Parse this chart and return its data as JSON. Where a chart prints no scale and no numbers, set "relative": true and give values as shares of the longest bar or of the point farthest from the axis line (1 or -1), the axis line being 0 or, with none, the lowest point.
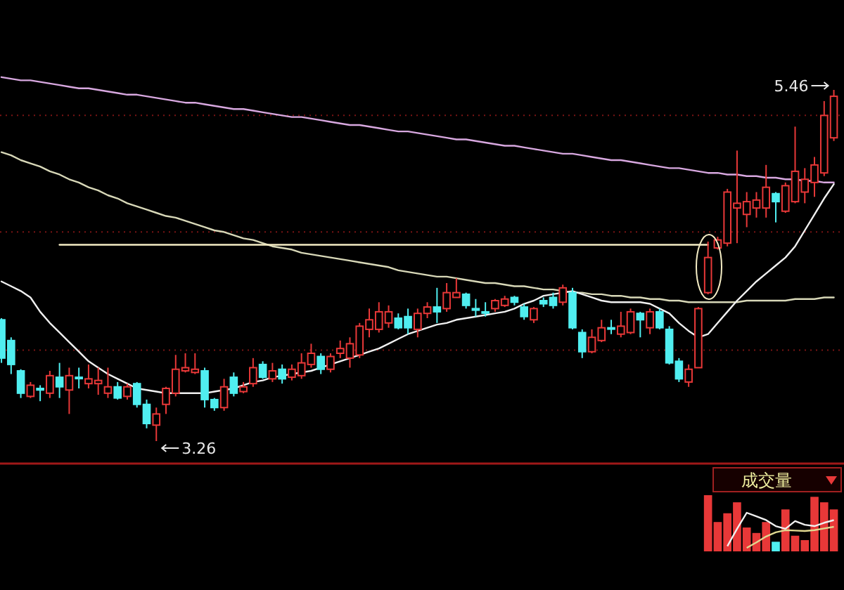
{
  "chart_data": [
    {
      "type": "candlestick",
      "categories": [
        null,
        null,
        null,
        null,
        null,
        null,
        null,
        null,
        null,
        null,
        null,
        null,
        null,
        null,
        null,
        null,
        null,
        null,
        null,
        null,
        null,
        null,
        null,
        null,
        null,
        null,
        null,
        null,
        null,
        null,
        null,
        null,
        null,
        null,
        null,
        null,
        null,
        null,
        null,
        null,
        null,
        null,
        null,
        null,
        null,
        null,
        null,
        null,
        null,
        null,
        null,
        null,
        null,
        null,
        null,
        null,
        null,
        null,
        null,
        null,
        null,
        null,
        null,
        null,
        null,
        null,
        null,
        null,
        null,
        null,
        null,
        null,
        null,
        null,
        null,
        null,
        null,
        null,
        null,
        null,
        null,
        null,
        null,
        null,
        null,
        null,
        null
      ],
      "ohlc": [
        [
          4.02,
          4.03,
          3.75,
          3.78
        ],
        [
          3.89,
          3.91,
          3.68,
          3.74
        ],
        [
          3.7,
          3.71,
          3.53,
          3.56
        ],
        [
          3.54,
          3.63,
          3.53,
          3.61
        ],
        [
          3.59,
          3.61,
          3.51,
          3.58
        ],
        [
          3.56,
          3.7,
          3.53,
          3.67
        ],
        [
          3.66,
          3.75,
          3.53,
          3.6
        ],
        [
          3.58,
          3.72,
          3.43,
          3.67
        ],
        [
          3.66,
          3.72,
          3.59,
          3.66
        ],
        [
          3.62,
          3.74,
          3.59,
          3.65
        ],
        [
          3.62,
          3.72,
          3.55,
          3.64
        ],
        [
          3.56,
          3.72,
          3.53,
          3.6
        ],
        [
          3.6,
          3.63,
          3.52,
          3.53
        ],
        [
          3.54,
          3.62,
          3.52,
          3.6
        ],
        [
          3.62,
          3.63,
          3.47,
          3.49
        ],
        [
          3.49,
          3.52,
          3.34,
          3.37
        ],
        [
          3.36,
          3.47,
          3.26,
          3.43
        ],
        [
          3.49,
          3.6,
          3.43,
          3.59
        ],
        [
          3.56,
          3.8,
          3.54,
          3.71
        ],
        [
          3.7,
          3.81,
          3.69,
          3.72
        ],
        [
          3.69,
          3.81,
          3.68,
          3.71
        ],
        [
          3.7,
          3.72,
          3.47,
          3.52
        ],
        [
          3.52,
          3.53,
          3.45,
          3.47
        ],
        [
          3.47,
          3.65,
          3.45,
          3.6
        ],
        [
          3.66,
          3.69,
          3.54,
          3.56
        ],
        [
          3.57,
          3.63,
          3.56,
          3.6
        ],
        [
          3.62,
          3.78,
          3.6,
          3.72
        ],
        [
          3.74,
          3.76,
          3.65,
          3.66
        ],
        [
          3.65,
          3.75,
          3.63,
          3.7
        ],
        [
          3.71,
          3.74,
          3.62,
          3.65
        ],
        [
          3.66,
          3.74,
          3.64,
          3.71
        ],
        [
          3.67,
          3.81,
          3.65,
          3.75
        ],
        [
          3.74,
          3.87,
          3.72,
          3.81
        ],
        [
          3.79,
          3.81,
          3.68,
          3.71
        ],
        [
          3.71,
          3.81,
          3.69,
          3.79
        ],
        [
          3.81,
          3.89,
          3.78,
          3.84
        ],
        [
          3.78,
          3.91,
          3.72,
          3.87
        ],
        [
          3.8,
          4.0,
          3.78,
          3.98
        ],
        [
          3.96,
          4.09,
          3.91,
          4.02
        ],
        [
          3.96,
          4.13,
          3.94,
          4.07
        ],
        [
          4.0,
          4.11,
          3.97,
          4.07
        ],
        [
          4.03,
          4.06,
          3.96,
          3.97
        ],
        [
          4.04,
          4.09,
          3.93,
          3.97
        ],
        [
          3.96,
          4.09,
          3.91,
          4.06
        ],
        [
          4.06,
          4.13,
          4.03,
          4.1
        ],
        [
          4.1,
          4.22,
          4.0,
          4.07
        ],
        [
          4.09,
          4.25,
          4.07,
          4.19
        ],
        [
          4.16,
          4.28,
          4.16,
          4.19
        ],
        [
          4.18,
          4.19,
          4.09,
          4.11
        ],
        [
          4.09,
          4.15,
          4.04,
          4.08
        ],
        [
          4.07,
          4.13,
          4.04,
          4.07
        ],
        [
          4.09,
          4.15,
          4.07,
          4.14
        ],
        [
          4.11,
          4.17,
          4.1,
          4.15
        ],
        [
          4.16,
          4.17,
          4.11,
          4.13
        ],
        [
          4.1,
          4.12,
          4.02,
          4.04
        ],
        [
          4.02,
          4.1,
          4.0,
          4.09
        ],
        [
          4.14,
          4.16,
          4.1,
          4.12
        ],
        [
          4.16,
          4.19,
          4.09,
          4.11
        ],
        [
          4.13,
          4.24,
          4.11,
          4.22
        ],
        [
          4.19,
          4.22,
          3.96,
          3.97
        ],
        [
          3.94,
          3.96,
          3.78,
          3.82
        ],
        [
          3.82,
          3.96,
          3.81,
          3.91
        ],
        [
          3.89,
          4.02,
          3.88,
          3.97
        ],
        [
          3.97,
          4.02,
          3.93,
          3.97
        ],
        [
          3.93,
          4.07,
          3.91,
          3.98
        ],
        [
          3.94,
          4.09,
          3.93,
          4.07
        ],
        [
          4.06,
          4.07,
          3.91,
          4.02
        ],
        [
          3.97,
          4.09,
          3.93,
          4.07
        ],
        [
          4.07,
          4.09,
          3.96,
          3.97
        ],
        [
          3.96,
          3.98,
          3.74,
          3.75
        ],
        [
          3.76,
          3.78,
          3.63,
          3.65
        ],
        [
          3.63,
          3.74,
          3.6,
          3.71
        ],
        [
          3.72,
          4.1,
          3.72,
          4.09
        ],
        [
          4.19,
          4.51,
          4.18,
          4.41
        ],
        [
          4.47,
          4.54,
          4.46,
          4.52
        ],
        [
          4.5,
          4.84,
          4.48,
          4.82
        ],
        [
          4.72,
          5.08,
          4.5,
          4.75
        ],
        [
          4.68,
          4.82,
          4.6,
          4.76
        ],
        [
          4.72,
          4.82,
          4.66,
          4.77
        ],
        [
          4.72,
          4.99,
          4.66,
          4.85
        ],
        [
          4.81,
          4.82,
          4.63,
          4.76
        ],
        [
          4.7,
          4.88,
          4.69,
          4.86
        ],
        [
          4.76,
          5.23,
          4.75,
          4.95
        ],
        [
          4.82,
          4.97,
          4.75,
          4.9
        ],
        [
          4.88,
          5.04,
          4.79,
          4.99
        ],
        [
          4.94,
          5.39,
          4.92,
          5.3
        ],
        [
          5.16,
          5.46,
          5.14,
          5.42
        ]
      ],
      "colors": [
        "#50eef0",
        "#50eef0",
        "#50eef0",
        "#e83838",
        "#50eef0",
        "#e83838",
        "#50eef0",
        "#e83838",
        "#50eef0",
        "#e83838",
        "#e83838",
        "#e83838",
        "#50eef0",
        "#e83838",
        "#50eef0",
        "#50eef0",
        "#e83838",
        "#e83838",
        "#e83838",
        "#e83838",
        "#e83838",
        "#50eef0",
        "#50eef0",
        "#e83838",
        "#50eef0",
        "#e83838",
        "#e83838",
        "#50eef0",
        "#e83838",
        "#50eef0",
        "#e83838",
        "#e83838",
        "#e83838",
        "#50eef0",
        "#e83838",
        "#e83838",
        "#e83838",
        "#e83838",
        "#e83838",
        "#e83838",
        "#e83838",
        "#50eef0",
        "#50eef0",
        "#e83838",
        "#e83838",
        "#50eef0",
        "#e83838",
        "#e83838",
        "#50eef0",
        "#50eef0",
        "#50eef0",
        "#e83838",
        "#e83838",
        "#50eef0",
        "#50eef0",
        "#e83838",
        "#50eef0",
        "#50eef0",
        "#e83838",
        "#50eef0",
        "#50eef0",
        "#e83838",
        "#e83838",
        "#50eef0",
        "#e83838",
        "#e83838",
        "#50eef0",
        "#e83838",
        "#50eef0",
        "#50eef0",
        "#50eef0",
        "#e83838",
        "#e83838",
        "#e83838",
        "#e83838",
        "#e83838",
        "#e83838",
        "#e83838",
        "#e83838",
        "#e83838",
        "#50eef0",
        "#e83838",
        "#e83838",
        "#e83838",
        "#e83838",
        "#e83838",
        "#e83838"
      ],
      "series": [
        {
          "type": "line",
          "color": "#d8a8e0",
          "values": [
            5.54,
            5.53,
            5.52,
            5.52,
            5.51,
            5.5,
            5.49,
            5.48,
            5.47,
            5.47,
            5.46,
            5.45,
            5.44,
            5.43,
            5.43,
            5.42,
            5.41,
            5.4,
            5.39,
            5.38,
            5.38,
            5.37,
            5.36,
            5.35,
            5.34,
            5.34,
            5.33,
            5.32,
            5.31,
            5.3,
            5.29,
            5.29,
            5.28,
            5.27,
            5.26,
            5.25,
            5.24,
            5.24,
            5.23,
            5.22,
            5.21,
            5.2,
            5.2,
            5.19,
            5.18,
            5.17,
            5.16,
            5.15,
            5.15,
            5.14,
            5.13,
            5.12,
            5.11,
            5.11,
            5.1,
            5.09,
            5.08,
            5.07,
            5.06,
            5.06,
            5.05,
            5.04,
            5.03,
            5.02,
            5.02,
            5.01,
            5.0,
            4.99,
            4.98,
            4.97,
            4.97,
            4.96,
            4.95,
            4.94,
            4.94,
            4.93,
            4.93,
            4.92,
            4.92,
            4.91,
            4.91,
            4.9,
            4.9,
            4.89,
            4.89,
            4.88,
            4.88
          ]
        },
        {
          "type": "line",
          "color": "#d8d8b8",
          "values": [
            5.07,
            5.05,
            5.02,
            5.0,
            4.98,
            4.95,
            4.93,
            4.9,
            4.88,
            4.85,
            4.83,
            4.8,
            4.78,
            4.75,
            4.73,
            4.71,
            4.69,
            4.67,
            4.66,
            4.64,
            4.62,
            4.6,
            4.58,
            4.57,
            4.55,
            4.53,
            4.52,
            4.5,
            4.48,
            4.47,
            4.46,
            4.44,
            4.43,
            4.42,
            4.41,
            4.4,
            4.39,
            4.38,
            4.37,
            4.36,
            4.35,
            4.33,
            4.32,
            4.31,
            4.3,
            4.29,
            4.29,
            4.28,
            4.27,
            4.26,
            4.25,
            4.25,
            4.24,
            4.23,
            4.23,
            4.22,
            4.21,
            4.21,
            4.2,
            4.19,
            4.19,
            4.18,
            4.18,
            4.17,
            4.17,
            4.16,
            4.16,
            4.15,
            4.15,
            4.14,
            4.14,
            4.13,
            4.13,
            4.13,
            4.13,
            4.13,
            4.13,
            4.14,
            4.14,
            4.14,
            4.14,
            4.14,
            4.15,
            4.15,
            4.15,
            4.16,
            4.16
          ]
        },
        {
          "type": "line",
          "color": "#f0f0f0",
          "values": [
            4.26,
            4.23,
            4.2,
            4.16,
            4.07,
            4.0,
            3.94,
            3.88,
            3.82,
            3.76,
            3.72,
            3.68,
            3.65,
            3.62,
            3.59,
            3.58,
            3.57,
            3.56,
            3.56,
            3.56,
            3.56,
            3.56,
            3.57,
            3.58,
            3.59,
            3.61,
            3.63,
            3.64,
            3.66,
            3.67,
            3.68,
            3.69,
            3.7,
            3.72,
            3.74,
            3.76,
            3.78,
            3.8,
            3.82,
            3.84,
            3.87,
            3.9,
            3.93,
            3.95,
            3.97,
            3.99,
            4.0,
            4.02,
            4.03,
            4.04,
            4.05,
            4.06,
            4.07,
            4.09,
            4.12,
            4.14,
            4.17,
            4.18,
            4.19,
            4.2,
            4.18,
            4.16,
            4.14,
            4.13,
            4.13,
            4.13,
            4.13,
            4.12,
            4.09,
            4.06,
            4.0,
            3.95,
            3.91,
            3.93,
            4.0,
            4.07,
            4.14,
            4.2,
            4.26,
            4.31,
            4.36,
            4.41,
            4.48,
            4.58,
            4.68,
            4.78,
            4.87
          ]
        },
        {
          "type": "line",
          "color": "#f4ecc4",
          "values": [
            null,
            null,
            null,
            null,
            null,
            null,
            4.49,
            4.49,
            4.49,
            4.49,
            4.49,
            4.49,
            4.49,
            4.49,
            4.49,
            4.49,
            4.49,
            4.49,
            4.49,
            4.49,
            4.49,
            4.49,
            4.49,
            4.49,
            4.49,
            4.49,
            4.49,
            4.49,
            4.49,
            4.49,
            4.49,
            4.49,
            4.49,
            4.49,
            4.49,
            4.49,
            4.49,
            4.49,
            4.49,
            4.49,
            4.49,
            4.49,
            4.49,
            4.49,
            4.49,
            4.49,
            4.49,
            4.49,
            4.49,
            4.49,
            4.49,
            4.49,
            4.49,
            4.49,
            4.49,
            4.49,
            4.49,
            4.49,
            4.49,
            4.49,
            4.49,
            4.49,
            4.49,
            4.49,
            4.49,
            4.49,
            4.49,
            4.49,
            4.49,
            4.49,
            4.49,
            4.49,
            4.49,
            4.49,
            null,
            null,
            null,
            null,
            null,
            null,
            null,
            null,
            null,
            null,
            null,
            null,
            null
          ]
        }
      ],
      "grid": "y",
      "yticks": [
        {
          "value": 5.3,
          "label": null
        },
        {
          "value": 4.57,
          "label": null
        },
        {
          "value": 3.83,
          "label": null
        }
      ],
      "annotations": [
        "5.46",
        "3.26"
      ]
    },
    {
      "type": "bar",
      "title": "成交量",
      "relative": true,
      "categories": [
        null,
        null,
        null,
        null,
        null,
        null,
        null,
        null,
        null,
        null,
        null,
        null,
        null,
        null
      ],
      "series": [
        {
          "colors": [
            "#e83838",
            "#e83838",
            "#e83838",
            "#e83838",
            "#e83838",
            "#e83838",
            "#e83838",
            "#50eef0",
            "#e83838",
            "#e83838",
            "#e83838",
            "#e83838",
            "#e83838",
            "#e83838"
          ],
          "values": [
            1.0,
            0.51,
            0.67,
            0.87,
            0.41,
            0.31,
            0.51,
            0.15,
            0.74,
            0.26,
            0.18,
            0.97,
            0.87,
            0.74
          ]
        }
      ]
    },
    {
      "type": "line",
      "relative": true,
      "categories": [
        null,
        null,
        null,
        null,
        null,
        null,
        null,
        null,
        null,
        null,
        null,
        null
      ],
      "series": [
        {
          "color": "#f0f0f0",
          "values": [
            0,
            0.52,
            1,
            0.89,
            0.78,
            0.6,
            0.52,
            0.75,
            0.64,
            0.6,
            0.7,
            0.78
          ]
        }
      ]
    },
    {
      "type": "line",
      "relative": true,
      "categories": [
        null,
        null,
        null,
        null,
        null,
        null,
        null,
        null,
        null,
        null
      ],
      "series": [
        {
          "color": "#e0d890",
          "values": [
            0,
            0.26,
            0.54,
            0.74,
            0.84,
            0.82,
            0.8,
            0.84,
            0.92,
            1
          ]
        }
      ]
    }
  ]
}
